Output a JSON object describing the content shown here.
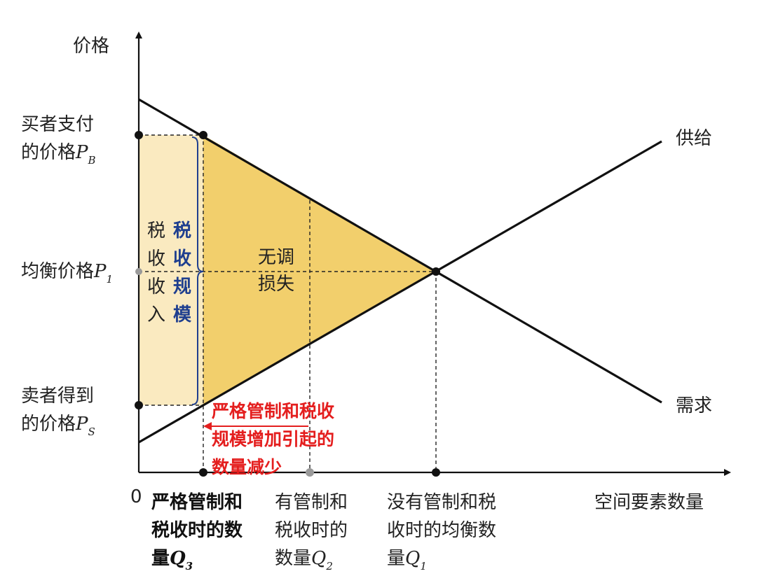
{
  "labels": {
    "y_axis": "价格",
    "x_axis": "空间要素数量",
    "origin": "0",
    "pb_line1": "买者支付",
    "pb_line2": "的价格",
    "pb_var": "P",
    "pb_sub": "B",
    "p1_text": "均衡价格",
    "p1_var": "P",
    "p1_sub": "1",
    "ps_line1": "卖者得到",
    "ps_line2": "的价格",
    "ps_var": "P",
    "ps_sub": "S",
    "supply": "供给",
    "demand": "需求",
    "tax_revenue_chars": [
      "税",
      "收",
      "收",
      "入"
    ],
    "tax_scale_chars": [
      "税",
      "收",
      "规",
      "模"
    ],
    "deadweight_line1": "无调",
    "deadweight_line2": "损失",
    "reduction_lines": [
      "严格管制和税收",
      "规模增加引起的",
      "数量减少"
    ],
    "q3_line1": "严格管制和",
    "q3_line2": "税收时的数",
    "q3_line3": "量",
    "q3_var": "Q",
    "q3_sub": "3",
    "q2_line1": "有管制和",
    "q2_line2": "税收时的",
    "q2_line3": "数量",
    "q2_var": "Q",
    "q2_sub": "2",
    "q1_line1": "没有管制和税",
    "q1_line2": "收时的均衡数",
    "q1_line3": "量",
    "q1_var": "Q",
    "q1_sub": "1"
  },
  "colors": {
    "tax_revenue_fill": "#faeac0",
    "deadweight_fill": "#f2cf6c",
    "tax_scale_text": "#1f3f8f",
    "reduction_text": "#e41e1e",
    "grey_marker": "#9a9a9a"
  }
}
